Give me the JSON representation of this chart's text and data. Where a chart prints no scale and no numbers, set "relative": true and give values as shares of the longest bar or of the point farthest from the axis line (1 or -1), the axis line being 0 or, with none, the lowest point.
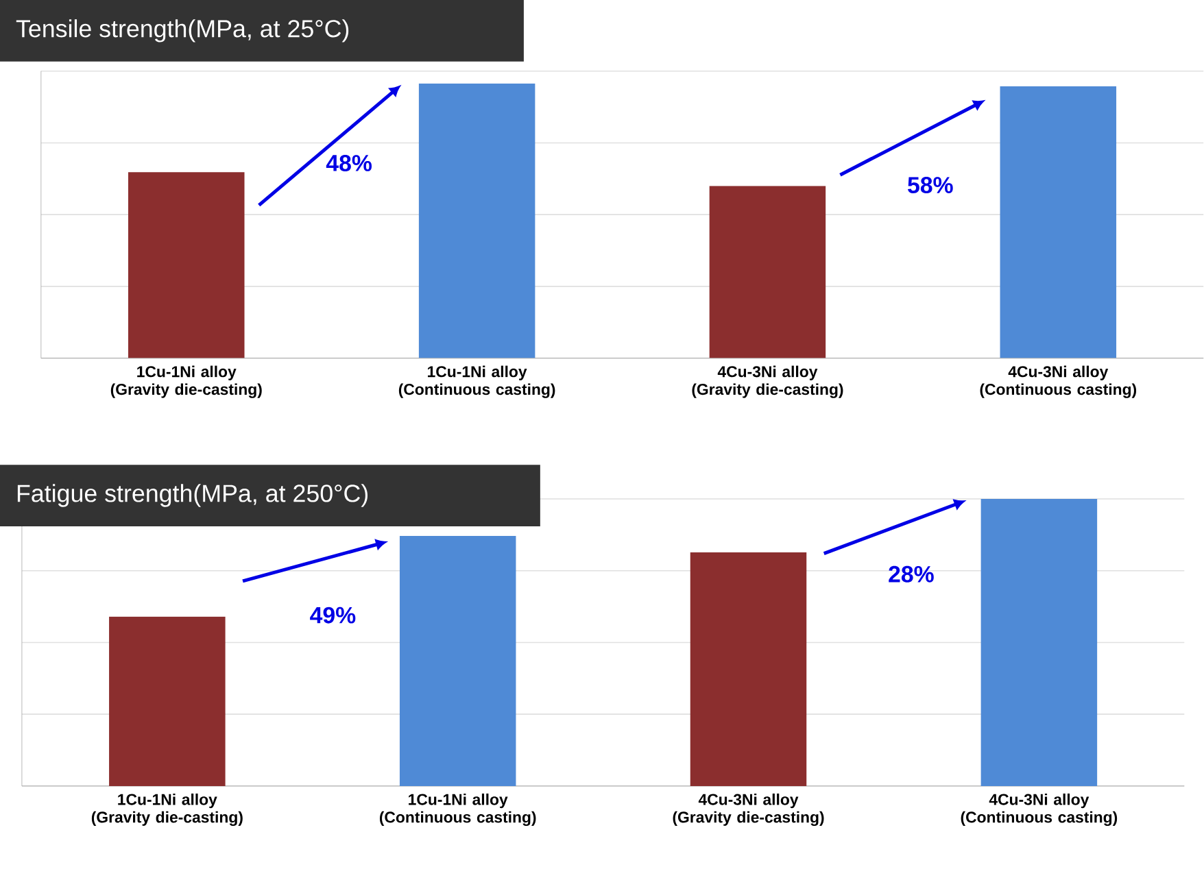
{
  "chart_data": [
    {
      "type": "bar",
      "title": "Tensile strength(MPa, at 25°C)",
      "relative": true,
      "grid": "y",
      "tick_labels": "x",
      "categories": [
        "1Cu-1Ni alloy (Gravity die-casting)",
        "1Cu-1Ni alloy (Continuous casting)",
        "4Cu-3Ni alloy (Gravity die-casting)",
        "4Cu-3Ni alloy (Continuous casting)"
      ],
      "values": [
        0.677,
        1,
        0.627,
        0.99
      ],
      "colors": [
        "#8b2e2e",
        "#4f8ad6",
        "#8b2e2e",
        "#4f8ad6"
      ],
      "annotations": [
        "48%",
        "58%"
      ]
    },
    {
      "type": "bar",
      "title": "Fatigue strength(MPa, at 250°C)",
      "relative": true,
      "grid": "y",
      "tick_labels": "x",
      "categories": [
        "1Cu-1Ni alloy (Gravity die-casting)",
        "1Cu-1Ni alloy (Continuous casting)",
        "4Cu-3Ni alloy (Gravity die-casting)",
        "4Cu-3Ni alloy (Continuous casting)"
      ],
      "values": [
        0.59,
        0.871,
        0.814,
        1
      ],
      "colors": [
        "#8b2e2e",
        "#4f8ad6",
        "#8b2e2e",
        "#4f8ad6"
      ],
      "annotations": [
        "49%",
        "28%"
      ]
    }
  ]
}
